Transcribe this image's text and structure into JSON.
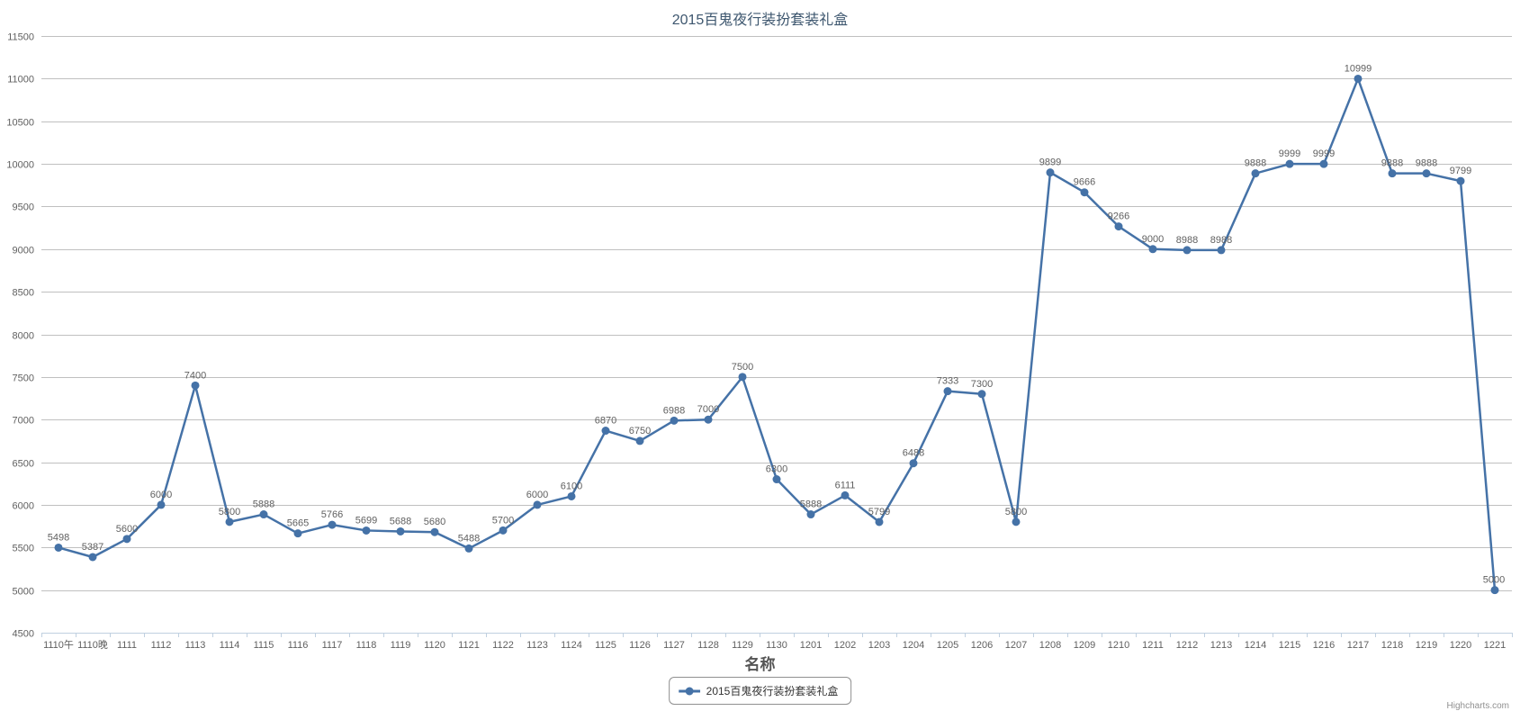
{
  "title": "2015百鬼夜行装扮套装礼盒",
  "legend": {
    "label": "2015百鬼夜行装扮套装礼盒"
  },
  "credit": "Highcharts.com",
  "colors": {
    "series": "#4572A7",
    "grid": "#C0C0C0",
    "axis_line": "#C0D0E0",
    "tick": "#C0D0E0",
    "axis_label": "#606060",
    "data_label": "#606060",
    "title": "#3E576F",
    "xaxis_title": "#555555",
    "legend_border": "#909090",
    "legend_text": "#333333",
    "credit_text": "#909090"
  },
  "chart_data": {
    "type": "line",
    "title": "2015百鬼夜行装扮套装礼盒",
    "xlabel": "名称",
    "ylabel": "",
    "legend_position": "bottom",
    "grid": true,
    "data_labels": true,
    "ylim": [
      4500,
      11500
    ],
    "ytick_step": 500,
    "categories": [
      "1110午",
      "1110晚",
      "1111",
      "1112",
      "1113",
      "1114",
      "1115",
      "1116",
      "1117",
      "1118",
      "1119",
      "1120",
      "1121",
      "1122",
      "1123",
      "1124",
      "1125",
      "1126",
      "1127",
      "1128",
      "1129",
      "1130",
      "1201",
      "1202",
      "1203",
      "1204",
      "1205",
      "1206",
      "1207",
      "1208",
      "1209",
      "1210",
      "1211",
      "1212",
      "1213",
      "1214",
      "1215",
      "1216",
      "1217",
      "1218",
      "1219",
      "1220",
      "1221"
    ],
    "series": [
      {
        "name": "2015百鬼夜行装扮套装礼盒",
        "values": [
          5498,
          5387,
          5600,
          6000,
          7400,
          5800,
          5888,
          5665,
          5766,
          5699,
          5688,
          5680,
          5488,
          5700,
          6000,
          6100,
          6870,
          6750,
          6988,
          7000,
          7500,
          6300,
          5888,
          6111,
          5799,
          6488,
          7333,
          7300,
          5800,
          9899,
          9666,
          9266,
          9000,
          8988,
          8988,
          9888,
          9999,
          9999,
          10999,
          9888,
          9888,
          9799,
          5000
        ]
      }
    ]
  }
}
